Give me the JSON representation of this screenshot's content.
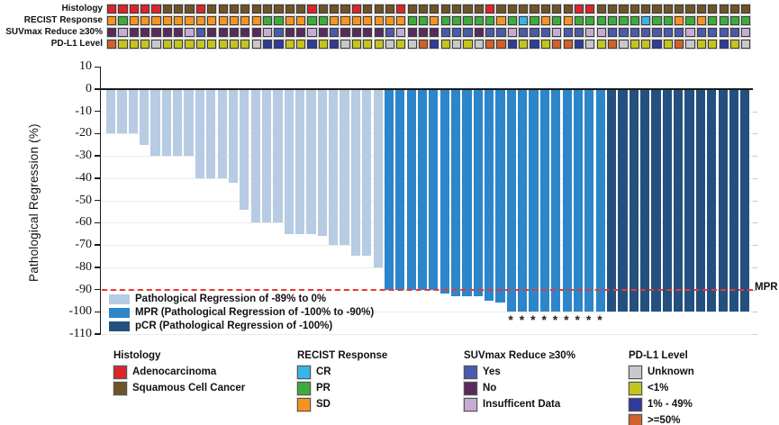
{
  "tracks": {
    "labels": [
      "Histology",
      "RECIST Response",
      "SUVmax Reduce ≥30%",
      "PD-L1 Level"
    ],
    "histology": [
      "A",
      "A",
      "A",
      "A",
      "A",
      "S",
      "S",
      "S",
      "A",
      "S",
      "S",
      "S",
      "S",
      "S",
      "S",
      "S",
      "S",
      "S",
      "A",
      "S",
      "S",
      "S",
      "A",
      "S",
      "S",
      "S",
      "A",
      "S",
      "S",
      "S",
      "S",
      "S",
      "S",
      "S",
      "A",
      "S",
      "S",
      "S",
      "S",
      "S",
      "S",
      "S",
      "A",
      "A",
      "S",
      "S",
      "S",
      "S",
      "S",
      "S",
      "S",
      "S",
      "S",
      "S",
      "S",
      "S",
      "S",
      "S"
    ],
    "recist": [
      "SD",
      "PR",
      "SD",
      "SD",
      "SD",
      "SD",
      "SD",
      "SD",
      "SD",
      "SD",
      "SD",
      "SD",
      "SD",
      "SD",
      "PR",
      "PR",
      "SD",
      "SD",
      "PR",
      "PR",
      "SD",
      "SD",
      "SD",
      "SD",
      "SD",
      "SD",
      "SD",
      "PR",
      "PR",
      "SD",
      "PR",
      "PR",
      "PR",
      "PR",
      "PR",
      "SD",
      "PR",
      "CR",
      "PR",
      "SD",
      "PR",
      "SD",
      "PR",
      "PR",
      "PR",
      "PR",
      "PR",
      "PR",
      "CR",
      "PR",
      "PR",
      "SD",
      "PR",
      "SD",
      "PR",
      "PR",
      "PR",
      "PR"
    ],
    "suvmax": [
      "No",
      "Ins",
      "No",
      "No",
      "No",
      "No",
      "No",
      "Ins",
      "Yes",
      "No",
      "No",
      "No",
      "No",
      "No",
      "Ins",
      "Yes",
      "No",
      "No",
      "Ins",
      "No",
      "Yes",
      "No",
      "No",
      "No",
      "No",
      "Yes",
      "Ins",
      "No",
      "No",
      "No",
      "Yes",
      "Yes",
      "Yes",
      "No",
      "Yes",
      "Yes",
      "Ins",
      "Yes",
      "Yes",
      "Yes",
      "Ins",
      "Yes",
      "Yes",
      "Ins",
      "Ins",
      "Yes",
      "Yes",
      "Yes",
      "Yes",
      "Yes",
      "Yes",
      "Yes",
      "Ins",
      "Yes",
      "Yes",
      "Yes",
      "Yes",
      "Ins"
    ],
    "pdl1": [
      "H",
      "L",
      "L",
      "L",
      "U",
      "L",
      "L",
      "L",
      "L",
      "L",
      "L",
      "L",
      "L",
      "U",
      "M",
      "M",
      "L",
      "L",
      "M",
      "L",
      "M",
      "U",
      "L",
      "L",
      "L",
      "U",
      "L",
      "U",
      "H",
      "M",
      "L",
      "U",
      "L",
      "U",
      "H",
      "H",
      "M",
      "L",
      "M",
      "L",
      "H",
      "H",
      "M",
      "U",
      "L",
      "H",
      "U",
      "L",
      "L",
      "M",
      "L",
      "H",
      "U",
      "L",
      "L",
      "M",
      "L",
      "U"
    ],
    "colors": {
      "histology": {
        "A": "#dd2428",
        "S": "#6f5426"
      },
      "recist": {
        "CR": "#36b5ea",
        "PR": "#3cac3a",
        "SD": "#f7941e"
      },
      "suvmax": {
        "Yes": "#4a5aac",
        "No": "#5a2a5e",
        "Ins": "#c6abd6"
      },
      "pdl1": {
        "U": "#c8c8c8",
        "L": "#c4c41e",
        "M": "#2e3c9b",
        "H": "#cf6129"
      }
    }
  },
  "chart_data": {
    "type": "bar",
    "title": "",
    "xlabel": "",
    "ylabel": "Pathological Regression (%)",
    "ylim": [
      -110,
      10
    ],
    "yticks": [
      10,
      0,
      -10,
      -20,
      -30,
      -40,
      -50,
      -60,
      -70,
      -80,
      -90,
      -100,
      -110
    ],
    "grid": "horizontal-light",
    "n_bars": 58,
    "values": [
      -20,
      -20,
      -20,
      -25,
      -30,
      -30,
      -30,
      -30,
      -40,
      -40,
      -40,
      -42,
      -54,
      -60,
      -60,
      -60,
      -65,
      -65,
      -65,
      -66,
      -70,
      -70,
      -75,
      -75,
      -80,
      -90,
      -90,
      -90,
      -90,
      -90,
      -92,
      -93,
      -93,
      -93,
      -95,
      -96,
      -100,
      -100,
      -100,
      -100,
      -100,
      -100,
      -100,
      -100,
      -100,
      -100,
      -100,
      -100,
      -100,
      -100,
      -100,
      -100,
      -100,
      -100,
      -100,
      -100,
      -100,
      -100
    ],
    "groups": {
      "light_end": 25,
      "mpr_end": 45
    },
    "bar_colors": {
      "light": "#b7cbe3",
      "mpr": "#2c86c9",
      "pcr": "#24507f"
    },
    "mpr_line": {
      "y": -90,
      "label": "MPR",
      "color": "#e8392e",
      "style": "dashed"
    },
    "asterisk_columns": [
      37,
      38,
      39,
      40,
      41,
      42,
      43,
      44,
      45
    ],
    "asterisk_glyph": "*",
    "legend": [
      {
        "label": "Pathological Regression of -89% to 0%",
        "color": "#b7cbe3"
      },
      {
        "label": "MPR (Pathological Regression of -100% to -90%)",
        "color": "#2c86c9"
      },
      {
        "label": "pCR (Pathological Regression of -100%)",
        "color": "#24507f"
      }
    ],
    "legend_position": "lower-left-inside"
  },
  "bottom_legend": [
    {
      "title": "Histology",
      "items": [
        {
          "label": "Adenocarcinoma",
          "color": "#dd2428"
        },
        {
          "label": "Squamous Cell Cancer",
          "color": "#6f5426"
        }
      ]
    },
    {
      "title": "RECIST Response",
      "items": [
        {
          "label": "CR",
          "color": "#36b5ea"
        },
        {
          "label": "PR",
          "color": "#3cac3a"
        },
        {
          "label": "SD",
          "color": "#f7941e"
        }
      ]
    },
    {
      "title": "SUVmax Reduce ≥30%",
      "items": [
        {
          "label": "Yes",
          "color": "#4a5aac"
        },
        {
          "label": "No",
          "color": "#5a2a5e"
        },
        {
          "label": "Insufficent Data",
          "color": "#c6abd6"
        }
      ]
    },
    {
      "title": "PD-L1 Level",
      "items": [
        {
          "label": "Unknown",
          "color": "#c8c8c8"
        },
        {
          "label": "<1%",
          "color": "#c4c41e"
        },
        {
          "label": "1% - 49%",
          "color": "#2e3c9b"
        },
        {
          "label": ">=50%",
          "color": "#cf6129"
        }
      ]
    }
  ]
}
